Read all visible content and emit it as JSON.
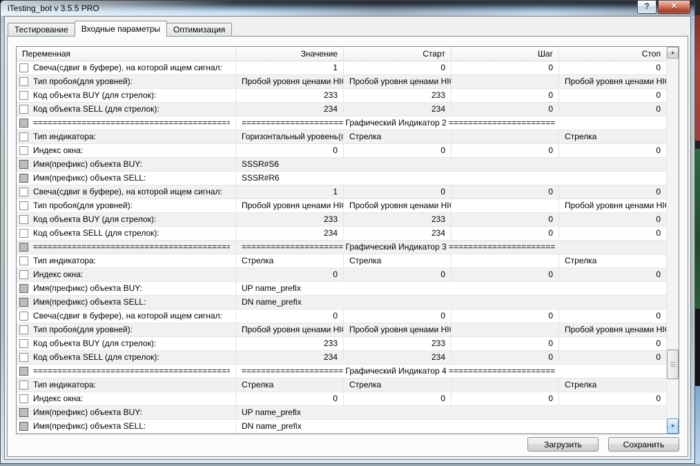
{
  "window": {
    "title": "iTesting_bot v 3.5.5 PRO",
    "help_button": "?",
    "close_button": "✕"
  },
  "tabs": [
    {
      "name": "tab-testing",
      "label": "Тестирование",
      "active": false
    },
    {
      "name": "tab-input-parameters",
      "label": "Входные параметры",
      "active": true
    },
    {
      "name": "tab-optimization",
      "label": "Оптимизация",
      "active": false
    }
  ],
  "table": {
    "columns": [
      "Переменная",
      "Значение",
      "Старт",
      "Шаг",
      "Стоп"
    ],
    "rows": [
      {
        "type": "values",
        "checkbox": "normal",
        "label": "Свеча(сдвиг в буфере), на которой ищем сигнал:",
        "values": [
          "1",
          "0",
          "0",
          "0"
        ]
      },
      {
        "type": "values",
        "checkbox": "normal",
        "label": "Тип пробоя(для уровней):",
        "values": [
          "Пробой уровня ценами HIG...",
          "Пробой уровня ценами HIG...",
          "",
          "Пробой уровня ценами HIG..."
        ]
      },
      {
        "type": "values",
        "checkbox": "normal",
        "label": "Код объекта BUY (для стрелок):",
        "values": [
          "233",
          "233",
          "0",
          "0"
        ]
      },
      {
        "type": "values",
        "checkbox": "normal",
        "label": "Код объекта SELL (для стрелок):",
        "values": [
          "234",
          "234",
          "0",
          "0"
        ]
      },
      {
        "type": "span",
        "checkbox": "disabled",
        "label": "============================================",
        "value": "===================== Графический Индикатор 2 ======================"
      },
      {
        "type": "values",
        "checkbox": "normal",
        "label": "Тип индикатора:",
        "values": [
          "Горизонтальный уровень(п...",
          "Стрелка",
          "",
          "Стрелка"
        ]
      },
      {
        "type": "values",
        "checkbox": "normal",
        "label": "Индекс окна:",
        "values": [
          "0",
          "0",
          "0",
          "0"
        ]
      },
      {
        "type": "span",
        "checkbox": "disabled",
        "label": "Имя(префикс) объекта BUY:",
        "value": "SSSR#S6"
      },
      {
        "type": "span",
        "checkbox": "disabled",
        "label": "Имя(префикс) объекта SELL:",
        "value": "SSSR#R6"
      },
      {
        "type": "values",
        "checkbox": "normal",
        "label": "Свеча(сдвиг в буфере), на которой ищем сигнал:",
        "values": [
          "1",
          "0",
          "0",
          "0"
        ]
      },
      {
        "type": "values",
        "checkbox": "normal",
        "label": "Тип пробоя(для уровней):",
        "values": [
          "Пробой уровня ценами HIG...",
          "Пробой уровня ценами HIG...",
          "",
          "Пробой уровня ценами HIG..."
        ]
      },
      {
        "type": "values",
        "checkbox": "normal",
        "label": "Код объекта BUY (для стрелок):",
        "values": [
          "233",
          "233",
          "0",
          "0"
        ]
      },
      {
        "type": "values",
        "checkbox": "normal",
        "label": "Код объекта SELL (для стрелок):",
        "values": [
          "234",
          "234",
          "0",
          "0"
        ]
      },
      {
        "type": "span",
        "checkbox": "disabled",
        "label": "============================================",
        "value": "===================== Графический Индикатор 3 ======================"
      },
      {
        "type": "values",
        "checkbox": "normal",
        "label": "Тип индикатора:",
        "values": [
          "Стрелка",
          "Стрелка",
          "",
          "Стрелка"
        ]
      },
      {
        "type": "values",
        "checkbox": "normal",
        "label": "Индекс окна:",
        "values": [
          "0",
          "0",
          "0",
          "0"
        ]
      },
      {
        "type": "span",
        "checkbox": "disabled",
        "label": "Имя(префикс) объекта BUY:",
        "value": "UP name_prefix"
      },
      {
        "type": "span",
        "checkbox": "disabled",
        "label": "Имя(префикс) объекта SELL:",
        "value": "DN name_prefix"
      },
      {
        "type": "values",
        "checkbox": "normal",
        "label": "Свеча(сдвиг в буфере), на которой ищем сигнал:",
        "values": [
          "0",
          "0",
          "0",
          "0"
        ]
      },
      {
        "type": "values",
        "checkbox": "normal",
        "label": "Тип пробоя(для уровней):",
        "values": [
          "Пробой уровня ценами HIG...",
          "Пробой уровня ценами HIG...",
          "",
          "Пробой уровня ценами HIG..."
        ]
      },
      {
        "type": "values",
        "checkbox": "normal",
        "label": "Код объекта BUY (для стрелок):",
        "values": [
          "233",
          "233",
          "0",
          "0"
        ]
      },
      {
        "type": "values",
        "checkbox": "normal",
        "label": "Код объекта SELL (для стрелок):",
        "values": [
          "234",
          "234",
          "0",
          "0"
        ]
      },
      {
        "type": "span",
        "checkbox": "disabled",
        "label": "============================================",
        "value": "===================== Графический Индикатор 4 ======================"
      },
      {
        "type": "values",
        "checkbox": "normal",
        "label": "Тип индикатора:",
        "values": [
          "Стрелка",
          "Стрелка",
          "",
          "Стрелка"
        ]
      },
      {
        "type": "values",
        "checkbox": "normal",
        "label": "Индекс окна:",
        "values": [
          "0",
          "0",
          "0",
          "0"
        ]
      },
      {
        "type": "span",
        "checkbox": "disabled",
        "label": "Имя(префикс) объекта BUY:",
        "value": "UP name_prefix"
      },
      {
        "type": "span",
        "checkbox": "disabled",
        "label": "Имя(префикс) объекта SELL:",
        "value": "DN name_prefix"
      }
    ]
  },
  "scrollbar": {
    "up": "▲",
    "down": "▼"
  },
  "buttons": {
    "load": "Загрузить",
    "save": "Сохранить"
  },
  "colors": {
    "close_button_red": "#c4543c",
    "scrollbar_hot_blue": "#cfe6f8",
    "alt_row": "#f1f1f1"
  }
}
